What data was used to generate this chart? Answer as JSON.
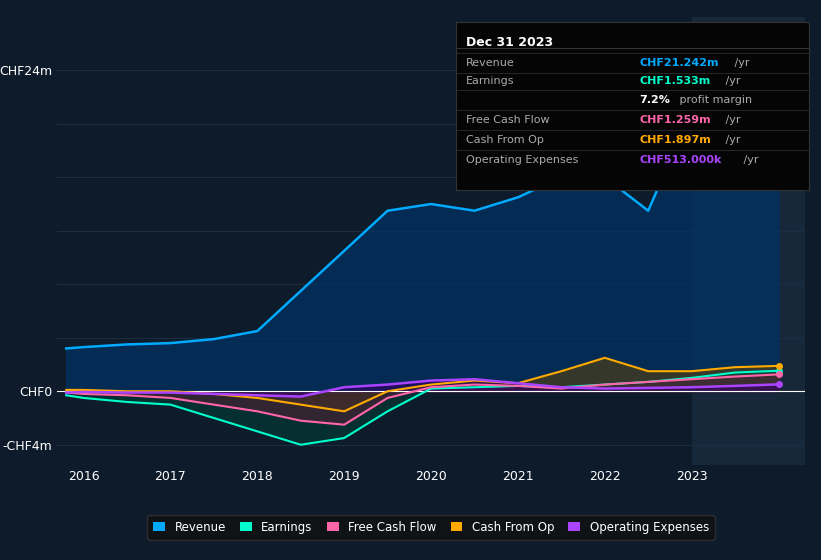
{
  "background_color": "#0d1b2a",
  "chart_bg_color": "#0d1b2a",
  "grid_color": "#1e3048",
  "zero_line_color": "#ffffff",
  "title": "earnings-and-revenue-history",
  "ylim": [
    -5.5,
    28
  ],
  "xlim": [
    2015.7,
    2024.3
  ],
  "xticks": [
    2016,
    2017,
    2018,
    2019,
    2020,
    2021,
    2022,
    2023
  ],
  "years": [
    2015.8,
    2016,
    2016.5,
    2017,
    2017.5,
    2018,
    2018.5,
    2019,
    2019.5,
    2020,
    2020.5,
    2021,
    2021.5,
    2022,
    2022.5,
    2023,
    2023.5,
    2024.0
  ],
  "revenue": [
    3.2,
    3.3,
    3.5,
    3.6,
    3.9,
    4.5,
    7.5,
    10.5,
    13.5,
    14.0,
    13.5,
    14.5,
    16.0,
    16.0,
    13.5,
    21.0,
    23.5,
    21.2
  ],
  "earnings": [
    -0.3,
    -0.5,
    -0.8,
    -1.0,
    -2.0,
    -3.0,
    -4.0,
    -3.5,
    -1.5,
    0.2,
    0.3,
    0.4,
    0.3,
    0.5,
    0.7,
    1.0,
    1.4,
    1.533
  ],
  "free_cash_flow": [
    -0.1,
    -0.2,
    -0.3,
    -0.5,
    -1.0,
    -1.5,
    -2.2,
    -2.5,
    -0.5,
    0.3,
    0.5,
    0.4,
    0.2,
    0.5,
    0.7,
    0.9,
    1.1,
    1.259
  ],
  "cash_from_op": [
    0.1,
    0.1,
    0.0,
    0.0,
    -0.2,
    -0.5,
    -1.0,
    -1.5,
    0.0,
    0.5,
    0.8,
    0.6,
    1.5,
    2.5,
    1.5,
    1.5,
    1.8,
    1.897
  ],
  "operating_expenses": [
    -0.1,
    -0.05,
    -0.1,
    -0.1,
    -0.2,
    -0.3,
    -0.4,
    0.3,
    0.5,
    0.8,
    0.9,
    0.6,
    0.3,
    0.2,
    0.25,
    0.3,
    0.4,
    0.513
  ],
  "revenue_color": "#00aaff",
  "earnings_color": "#00ffcc",
  "fcf_color": "#ff66aa",
  "cashop_color": "#ffaa00",
  "opex_color": "#aa44ff",
  "revenue_fill": "#003366",
  "earnings_fill": "#00443a",
  "fcf_fill": "#661a33",
  "cashop_fill": "#664400",
  "opex_fill": "#330066",
  "legend_labels": [
    "Revenue",
    "Earnings",
    "Free Cash Flow",
    "Cash From Op",
    "Operating Expenses"
  ],
  "legend_colors": [
    "#00aaff",
    "#00ffcc",
    "#ff66aa",
    "#ffaa00",
    "#aa44ff"
  ],
  "info_box": {
    "title": "Dec 31 2023",
    "rows": [
      {
        "label": "Revenue",
        "value": "CHF21.242m",
        "value_color": "#00aaff",
        "suffix": " /yr"
      },
      {
        "label": "Earnings",
        "value": "CHF1.533m",
        "value_color": "#00ffcc",
        "suffix": " /yr"
      },
      {
        "label": "",
        "value": "7.2%",
        "value_color": "#ffffff",
        "suffix": " profit margin"
      },
      {
        "label": "Free Cash Flow",
        "value": "CHF1.259m",
        "value_color": "#ff66aa",
        "suffix": " /yr"
      },
      {
        "label": "Cash From Op",
        "value": "CHF1.897m",
        "value_color": "#ffaa00",
        "suffix": " /yr"
      },
      {
        "label": "Operating Expenses",
        "value": "CHF513.000k",
        "value_color": "#aa44ff",
        "suffix": " /yr"
      }
    ]
  },
  "highlight_rect_x": 2023.0
}
